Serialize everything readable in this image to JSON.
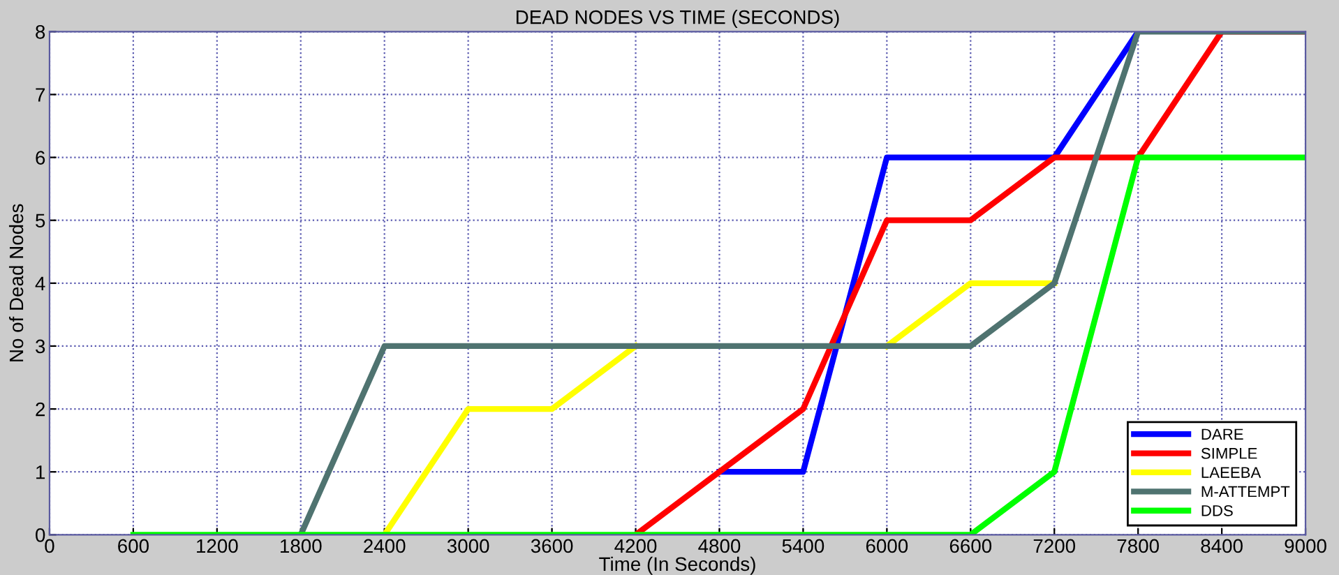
{
  "chart_data": {
    "type": "line",
    "title": "DEAD NODES VS TIME (SECONDS)",
    "xlabel": "Time (In Seconds)",
    "ylabel": "No of Dead Nodes",
    "x": [
      600,
      1200,
      1800,
      2400,
      3000,
      3600,
      4200,
      4800,
      5400,
      6000,
      6600,
      7200,
      7800,
      8400,
      9000
    ],
    "series": [
      {
        "name": "DARE",
        "color": "#0000ff",
        "values": [
          null,
          null,
          null,
          null,
          null,
          null,
          null,
          1,
          1,
          6,
          6,
          6,
          8,
          null,
          null
        ]
      },
      {
        "name": "SIMPLE",
        "color": "#ff0000",
        "values": [
          null,
          null,
          null,
          null,
          null,
          null,
          0,
          1,
          2,
          5,
          5,
          6,
          6,
          8,
          8
        ]
      },
      {
        "name": "LAEEBA",
        "color": "#ffff00",
        "values": [
          null,
          null,
          null,
          0,
          2,
          2,
          3,
          null,
          null,
          3,
          4,
          4,
          null,
          null,
          null
        ]
      },
      {
        "name": "M-ATTEMPT",
        "color": "#4f7370",
        "values": [
          null,
          null,
          0,
          3,
          3,
          3,
          3,
          3,
          3,
          3,
          3,
          4,
          8,
          8,
          8
        ]
      },
      {
        "name": "DDS",
        "color": "#00ff00",
        "values": [
          0,
          0,
          0,
          0,
          0,
          0,
          0,
          0,
          0,
          0,
          0,
          1,
          6,
          6,
          6
        ]
      }
    ],
    "xlim": [
      0,
      9000
    ],
    "xticks": [
      0,
      600,
      1200,
      1800,
      2400,
      3000,
      3600,
      4200,
      4800,
      5400,
      6000,
      6600,
      7200,
      7800,
      8400,
      9000
    ],
    "ylim": [
      0,
      8
    ],
    "yticks": [
      0,
      1,
      2,
      3,
      4,
      5,
      6,
      7,
      8
    ],
    "grid": true,
    "legend": "bottom right",
    "marker": "none",
    "line_style": "solid"
  }
}
